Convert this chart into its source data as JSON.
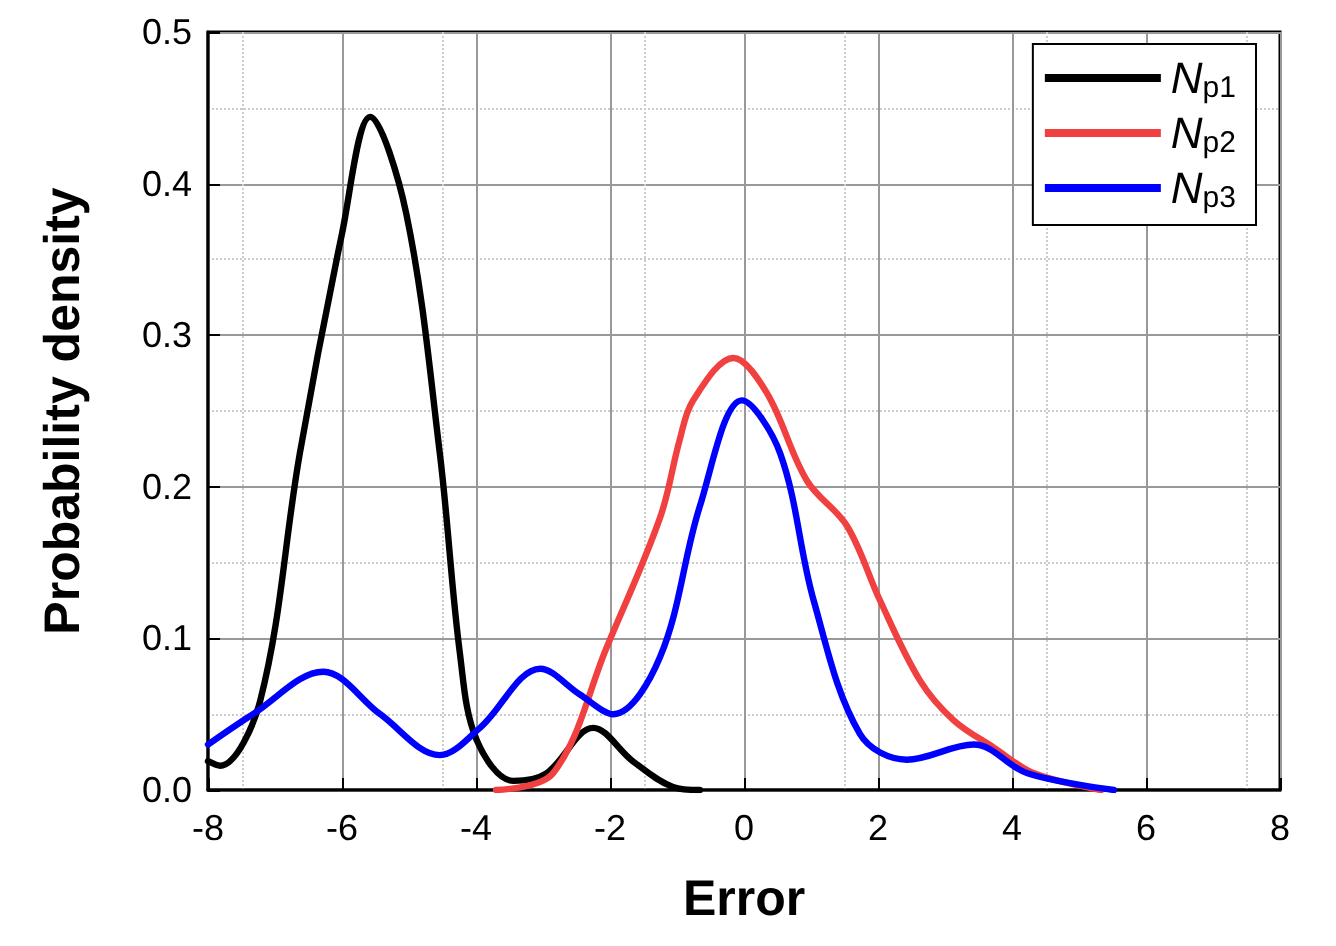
{
  "chart_data": {
    "type": "line",
    "xlabel": "Error",
    "ylabel": "Probability density",
    "xlim": [
      -8,
      8
    ],
    "xticks": [
      -8,
      -6,
      -4,
      -2,
      0,
      2,
      4,
      6,
      8
    ],
    "ylim": [
      0,
      0.5
    ],
    "yticks": [
      {
        "value": 0,
        "label": "0.0"
      },
      {
        "value": 0.1,
        "label": "0.1"
      },
      {
        "value": 0.2,
        "label": "0.2"
      },
      {
        "value": 0.3,
        "label": "0.3"
      },
      {
        "value": 0.4,
        "label": "0.4"
      },
      {
        "value": 0.5,
        "label": "0.5"
      }
    ],
    "grid": true,
    "legend": "top right",
    "marker": "none",
    "line_style": "solid",
    "series": [
      {
        "name": "N$_{p1}$",
        "color": "#000000",
        "x": [
          -8,
          -7.82,
          -7.22,
          -6.63,
          -6.0,
          -5.58,
          -5.04,
          -4.54,
          -4.24,
          -3.99,
          -3.44,
          -2.95,
          -2.25,
          -1.66,
          -1.06,
          -0.66
        ],
        "values": [
          0.019,
          0.016,
          0.059,
          0.222,
          0.367,
          0.444,
          0.38,
          0.222,
          0.09,
          0.033,
          0.006,
          0.011,
          0.041,
          0.019,
          0.002,
          0
        ]
      },
      {
        "name": "N$_{p2}$",
        "color": "#f04040",
        "x": [
          -3.7,
          -2.85,
          -2.05,
          -1.25,
          -0.96,
          -0.76,
          -0.16,
          0.34,
          0.94,
          1.54,
          2.03,
          2.63,
          3.13,
          3.73,
          4.33,
          5.33
        ],
        "values": [
          0,
          0.011,
          0.094,
          0.18,
          0.231,
          0.257,
          0.285,
          0.262,
          0.204,
          0.174,
          0.125,
          0.072,
          0.046,
          0.028,
          0.011,
          0
        ]
      },
      {
        "name": "N$_{p3}$",
        "color": "#0000ff",
        "x": [
          -8,
          -7.33,
          -6.28,
          -5.43,
          -4.54,
          -3.94,
          -3.04,
          -2.45,
          -1.95,
          -1.25,
          -0.66,
          -0.03,
          0.54,
          1.04,
          1.73,
          2.43,
          3.43,
          4.23,
          5.52
        ],
        "values": [
          0.03,
          0.05,
          0.078,
          0.05,
          0.023,
          0.041,
          0.08,
          0.063,
          0.05,
          0.088,
          0.187,
          0.257,
          0.222,
          0.125,
          0.037,
          0.02,
          0.03,
          0.011,
          0
        ]
      }
    ]
  }
}
